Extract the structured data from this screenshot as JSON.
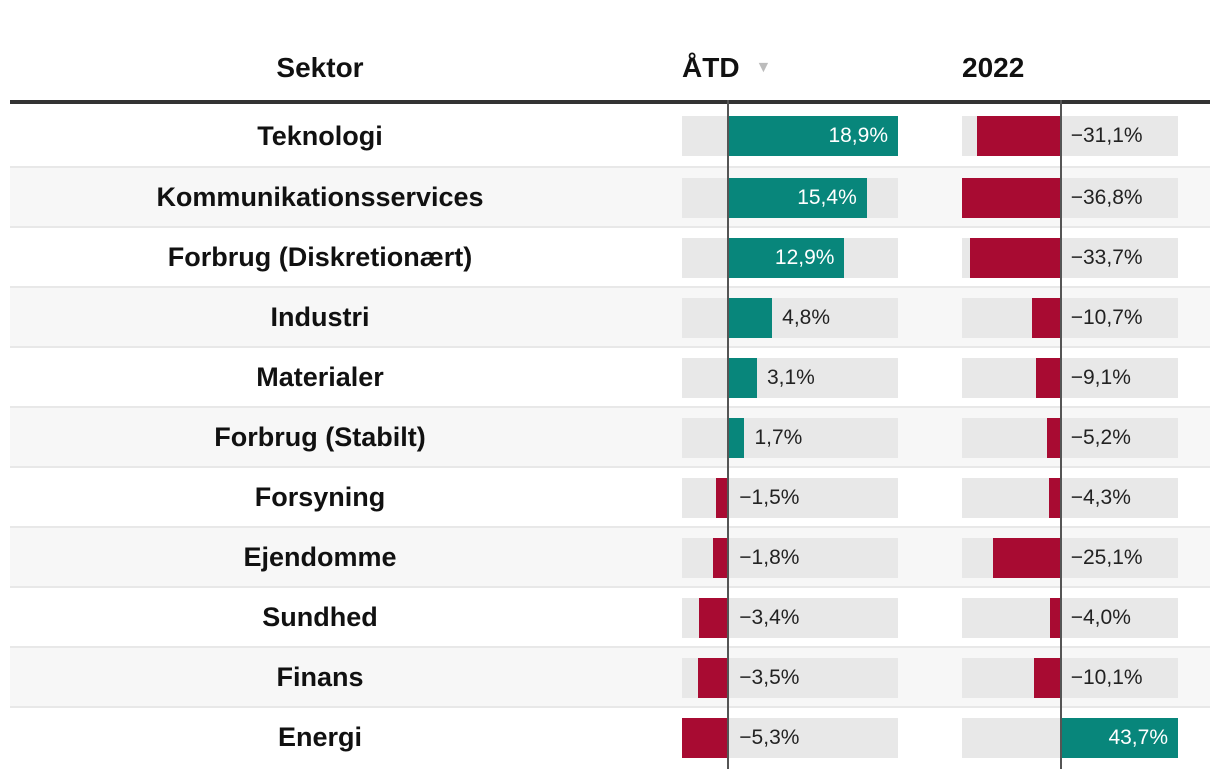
{
  "header": {
    "sector_label": "Sektor",
    "atd_label": "ÅTD",
    "year_label": "2022",
    "sort_icon": "▼"
  },
  "table": {
    "rows": [
      {
        "sector": "Teknologi",
        "atd_value": 18.9,
        "atd_label": "18,9%",
        "y2022_value": -31.1,
        "y2022_label": "−31,1%"
      },
      {
        "sector": "Kommunikationsservices",
        "atd_value": 15.4,
        "atd_label": "15,4%",
        "y2022_value": -36.8,
        "y2022_label": "−36,8%"
      },
      {
        "sector": "Forbrug (Diskretionært)",
        "atd_value": 12.9,
        "atd_label": "12,9%",
        "y2022_value": -33.7,
        "y2022_label": "−33,7%"
      },
      {
        "sector": "Industri",
        "atd_value": 4.8,
        "atd_label": "4,8%",
        "y2022_value": -10.7,
        "y2022_label": "−10,7%"
      },
      {
        "sector": "Materialer",
        "atd_value": 3.1,
        "atd_label": "3,1%",
        "y2022_value": -9.1,
        "y2022_label": "−9,1%"
      },
      {
        "sector": "Forbrug (Stabilt)",
        "atd_value": 1.7,
        "atd_label": "1,7%",
        "y2022_value": -5.2,
        "y2022_label": "−5,2%"
      },
      {
        "sector": "Forsyning",
        "atd_value": -1.5,
        "atd_label": "−1,5%",
        "y2022_value": -4.3,
        "y2022_label": "−4,3%"
      },
      {
        "sector": "Ejendomme",
        "atd_value": -1.8,
        "atd_label": "−1,8%",
        "y2022_value": -25.1,
        "y2022_label": "−25,1%"
      },
      {
        "sector": "Sundhed",
        "atd_value": -3.4,
        "atd_label": "−3,4%",
        "y2022_value": -4.0,
        "y2022_label": "−4,0%"
      },
      {
        "sector": "Finans",
        "atd_value": -3.5,
        "atd_label": "−3,5%",
        "y2022_value": -10.1,
        "y2022_label": "−10,1%"
      },
      {
        "sector": "Energi",
        "atd_value": -5.3,
        "atd_label": "−5,3%",
        "y2022_value": 43.7,
        "y2022_label": "43,7%"
      }
    ]
  },
  "chart_data": {
    "type": "table",
    "description": "Sector performance table with inline diverging horizontal bar charts, percent values with Danish decimal comma",
    "categories": [
      "Teknologi",
      "Kommunikationsservices",
      "Forbrug (Diskretionært)",
      "Industri",
      "Materialer",
      "Forbrug (Stabilt)",
      "Forsyning",
      "Ejendomme",
      "Sundhed",
      "Finans",
      "Energi"
    ],
    "series": [
      {
        "name": "ÅTD",
        "unit": "%",
        "values": [
          18.9,
          15.4,
          12.9,
          4.8,
          3.1,
          1.7,
          -1.5,
          -1.8,
          -3.4,
          -3.5,
          -5.3
        ],
        "axis_range": [
          -5.3,
          18.9
        ]
      },
      {
        "name": "2022",
        "unit": "%",
        "values": [
          -31.1,
          -36.8,
          -33.7,
          -10.7,
          -9.1,
          -5.2,
          -4.3,
          -25.1,
          -4.0,
          -10.1,
          43.7
        ],
        "axis_range": [
          -36.8,
          43.7
        ]
      }
    ],
    "sort": "ÅTD descending",
    "legend": "none",
    "positive_color": "#08867b",
    "negative_color": "#a80b32"
  },
  "colors": {
    "positive": "#08867b",
    "negative": "#a80b32",
    "track": "#e8e8e8",
    "row_alt": "#f7f7f7",
    "separator": "#e8e8e8",
    "header_rule": "#333333",
    "baseline": "#555555",
    "text": "#111111",
    "value_text": "#222222",
    "value_text_inverse": "#ffffff",
    "sort_icon": "#bcbcbc"
  }
}
